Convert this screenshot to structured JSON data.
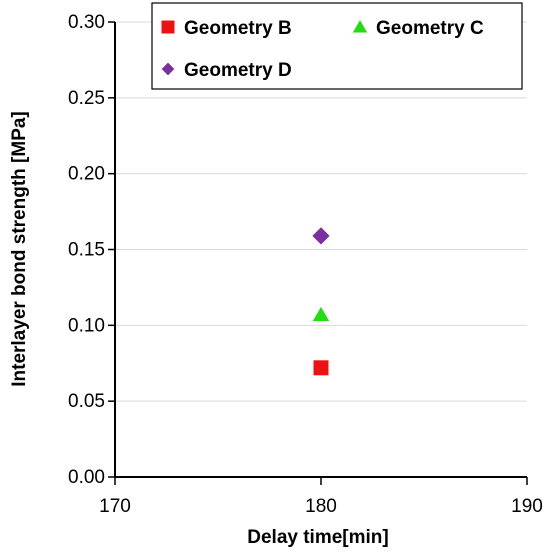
{
  "chart_data": {
    "type": "scatter",
    "xlabel": "Delay time[min]",
    "ylabel": "Interlayer bond strength [MPa]",
    "xlim": [
      170,
      190
    ],
    "ylim": [
      0,
      0.3
    ],
    "x_ticks": [
      "170",
      "180",
      "190"
    ],
    "y_ticks": [
      "0.00",
      "0.05",
      "0.10",
      "0.15",
      "0.20",
      "0.25",
      "0.30"
    ],
    "grid": "horizontal",
    "legend_position": "top",
    "series": [
      {
        "name": "Geometry B",
        "marker": "square",
        "color": "#ee1111",
        "x": [
          180
        ],
        "y": [
          0.072
        ]
      },
      {
        "name": "Geometry C",
        "marker": "triangle",
        "color": "#22dd11",
        "x": [
          180
        ],
        "y": [
          0.107
        ]
      },
      {
        "name": "Geometry D",
        "marker": "diamond",
        "color": "#7a2f9e",
        "x": [
          180
        ],
        "y": [
          0.159
        ]
      }
    ]
  }
}
